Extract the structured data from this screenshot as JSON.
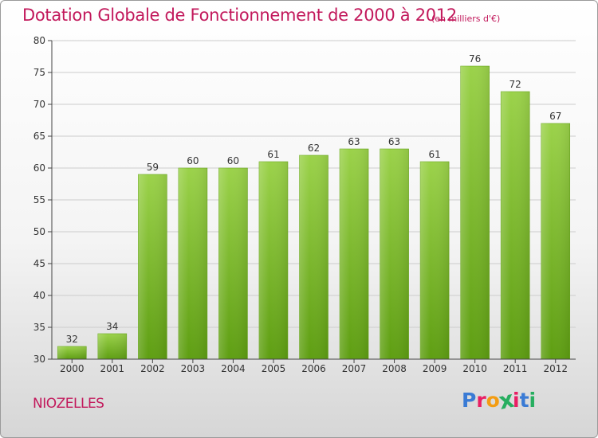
{
  "header": {
    "title": "Dotation Globale de Fonctionnement de 2000 à 2012",
    "unit_note": "(en milliers d'€)"
  },
  "footer": {
    "commune": "NIOZELLES",
    "logo_text": "Proxiti",
    "logo_colors": [
      "#3a7bd5",
      "#e91e63",
      "#f39c12",
      "#27ae60",
      "#e91e63",
      "#3a7bd5",
      "#27ae60"
    ]
  },
  "colors": {
    "title": "#c2185b",
    "bar_top": "#9bd24a",
    "bar_bottom": "#5e9e12",
    "grid": "#cccccc",
    "axis": "#444444"
  },
  "chart_data": {
    "type": "bar",
    "title": "Dotation Globale de Fonctionnement de 2000 à 2012",
    "subtitle": "(en milliers d'€)",
    "xlabel": "",
    "ylabel": "",
    "ylim": [
      30,
      80
    ],
    "yticks": [
      30,
      35,
      40,
      45,
      50,
      55,
      60,
      65,
      70,
      75,
      80
    ],
    "grid": true,
    "categories": [
      "2000",
      "2001",
      "2002",
      "2003",
      "2004",
      "2005",
      "2006",
      "2007",
      "2008",
      "2009",
      "2010",
      "2011",
      "2012"
    ],
    "values": [
      32,
      34,
      59,
      60,
      60,
      61,
      62,
      63,
      63,
      61,
      76,
      72,
      67
    ]
  }
}
